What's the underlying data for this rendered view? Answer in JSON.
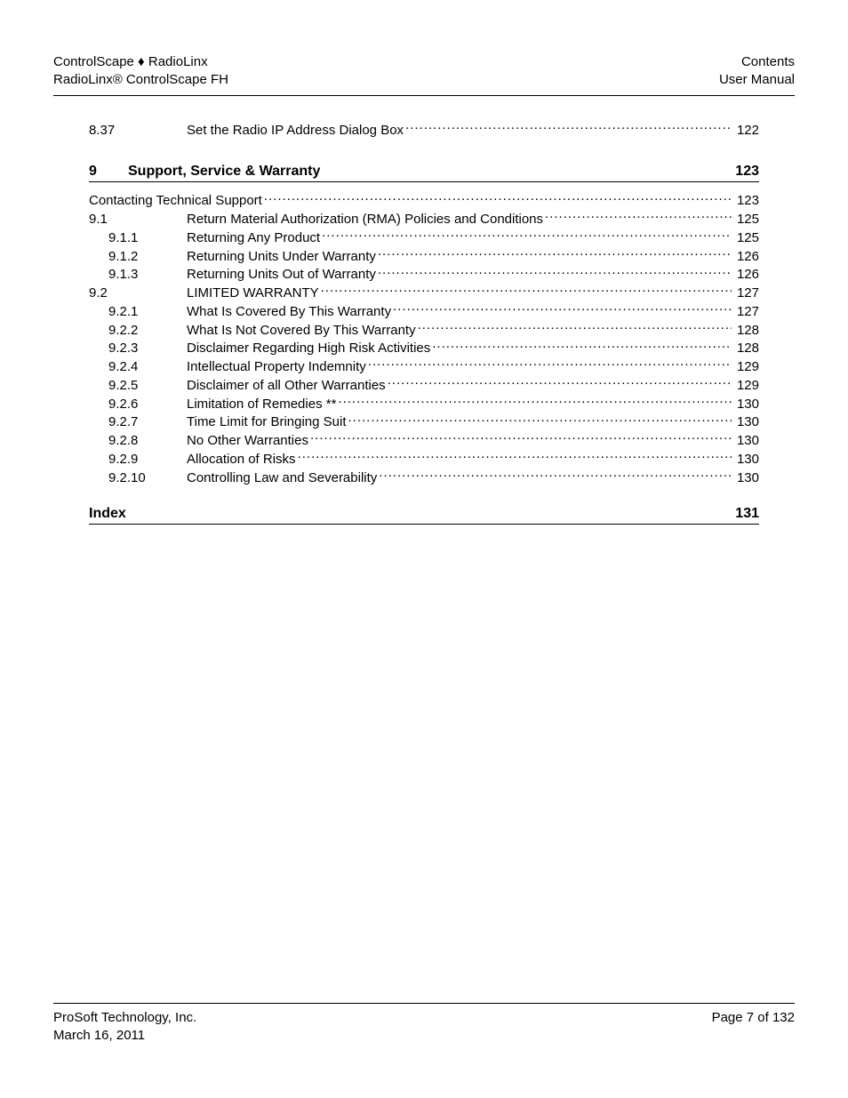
{
  "header": {
    "left_line1": "ControlScape ♦ RadioLinx",
    "left_line2": "RadioLinx®  ControlScape FH",
    "right_line1": "Contents",
    "right_line2": "User Manual"
  },
  "pre_section": [
    {
      "num": "8.37",
      "label": "Set the Radio IP Address Dialog Box",
      "page": "122",
      "indent": 0
    }
  ],
  "section9": {
    "num": "9",
    "title": "Support, Service & Warranty",
    "page": "123",
    "rows": [
      {
        "num": "",
        "label": "Contacting Technical Support",
        "page": "123",
        "indent": 0,
        "nonum": true
      },
      {
        "num": "9.1",
        "label": "Return Material Authorization (RMA) Policies and Conditions",
        "page": "125",
        "indent": 0
      },
      {
        "num": "9.1.1",
        "label": "Returning Any Product",
        "page": "125",
        "indent": 1
      },
      {
        "num": "9.1.2",
        "label": "Returning Units Under Warranty",
        "page": "126",
        "indent": 1
      },
      {
        "num": "9.1.3",
        "label": "Returning Units Out of Warranty",
        "page": "126",
        "indent": 1
      },
      {
        "num": "9.2",
        "label": "LIMITED WARRANTY",
        "page": "127",
        "indent": 0
      },
      {
        "num": "9.2.1",
        "label": "What Is Covered By This Warranty",
        "page": "127",
        "indent": 1
      },
      {
        "num": "9.2.2",
        "label": "What Is Not Covered By This Warranty",
        "page": "128",
        "indent": 1
      },
      {
        "num": "9.2.3",
        "label": "Disclaimer Regarding High Risk Activities",
        "page": "128",
        "indent": 1
      },
      {
        "num": "9.2.4",
        "label": "Intellectual Property Indemnity",
        "page": "129",
        "indent": 1
      },
      {
        "num": "9.2.5",
        "label": "Disclaimer of all Other Warranties",
        "page": "129",
        "indent": 1
      },
      {
        "num": "9.2.6",
        "label": "Limitation of Remedies **",
        "page": "130",
        "indent": 1
      },
      {
        "num": "9.2.7",
        "label": "Time Limit for Bringing Suit",
        "page": "130",
        "indent": 1
      },
      {
        "num": "9.2.8",
        "label": "No Other Warranties",
        "page": "130",
        "indent": 1
      },
      {
        "num": "9.2.9",
        "label": "Allocation of Risks",
        "page": "130",
        "indent": 1
      },
      {
        "num": "9.2.10",
        "label": "Controlling Law and Severability",
        "page": "130",
        "indent": 1
      }
    ]
  },
  "index": {
    "title": "Index",
    "page": "131"
  },
  "footer": {
    "left_line1": "ProSoft Technology, Inc.",
    "left_line2": "March 16, 2011",
    "right": "Page 7 of 132"
  }
}
